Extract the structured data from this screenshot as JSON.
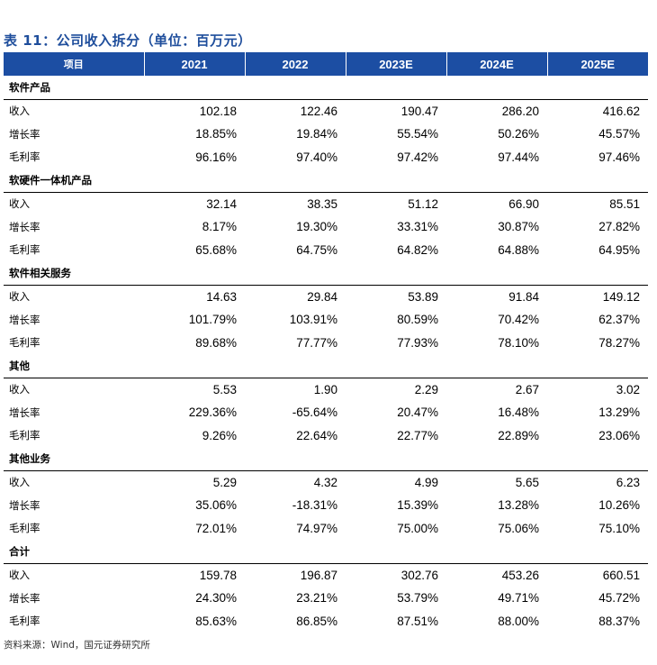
{
  "title": "表 11：公司收入拆分（单位：百万元）",
  "header": {
    "label": "项目",
    "years": [
      "2021",
      "2022",
      "2023E",
      "2024E",
      "2025E"
    ]
  },
  "sections": [
    {
      "name": "软件产品",
      "rows": [
        {
          "label": "收入",
          "values": [
            "102.18",
            "122.46",
            "190.47",
            "286.20",
            "416.62"
          ]
        },
        {
          "label": "增长率",
          "values": [
            "18.85%",
            "19.84%",
            "55.54%",
            "50.26%",
            "45.57%"
          ]
        },
        {
          "label": "毛利率",
          "values": [
            "96.16%",
            "97.40%",
            "97.42%",
            "97.44%",
            "97.46%"
          ]
        }
      ]
    },
    {
      "name": "软硬件一体机产品",
      "rows": [
        {
          "label": "收入",
          "values": [
            "32.14",
            "38.35",
            "51.12",
            "66.90",
            "85.51"
          ]
        },
        {
          "label": "增长率",
          "values": [
            "8.17%",
            "19.30%",
            "33.31%",
            "30.87%",
            "27.82%"
          ]
        },
        {
          "label": "毛利率",
          "values": [
            "65.68%",
            "64.75%",
            "64.82%",
            "64.88%",
            "64.95%"
          ]
        }
      ]
    },
    {
      "name": "软件相关服务",
      "rows": [
        {
          "label": "收入",
          "values": [
            "14.63",
            "29.84",
            "53.89",
            "91.84",
            "149.12"
          ]
        },
        {
          "label": "增长率",
          "values": [
            "101.79%",
            "103.91%",
            "80.59%",
            "70.42%",
            "62.37%"
          ]
        },
        {
          "label": "毛利率",
          "values": [
            "89.68%",
            "77.77%",
            "77.93%",
            "78.10%",
            "78.27%"
          ]
        }
      ]
    },
    {
      "name": "其他",
      "rows": [
        {
          "label": "收入",
          "values": [
            "5.53",
            "1.90",
            "2.29",
            "2.67",
            "3.02"
          ]
        },
        {
          "label": "增长率",
          "values": [
            "229.36%",
            "-65.64%",
            "20.47%",
            "16.48%",
            "13.29%"
          ]
        },
        {
          "label": "毛利率",
          "values": [
            "9.26%",
            "22.64%",
            "22.77%",
            "22.89%",
            "23.06%"
          ]
        }
      ]
    },
    {
      "name": "其他业务",
      "rows": [
        {
          "label": "收入",
          "values": [
            "5.29",
            "4.32",
            "4.99",
            "5.65",
            "6.23"
          ]
        },
        {
          "label": "增长率",
          "values": [
            "35.06%",
            "-18.31%",
            "15.39%",
            "13.28%",
            "10.26%"
          ]
        },
        {
          "label": "毛利率",
          "values": [
            "72.01%",
            "74.97%",
            "75.00%",
            "75.06%",
            "75.10%"
          ]
        }
      ]
    },
    {
      "name": "合计",
      "rows": [
        {
          "label": "收入",
          "values": [
            "159.78",
            "196.87",
            "302.76",
            "453.26",
            "660.51"
          ]
        },
        {
          "label": "增长率",
          "values": [
            "24.30%",
            "23.21%",
            "53.79%",
            "49.71%",
            "45.72%"
          ]
        },
        {
          "label": "毛利率",
          "values": [
            "85.63%",
            "86.85%",
            "87.51%",
            "88.00%",
            "88.37%"
          ]
        }
      ]
    }
  ],
  "source": "资料来源：Wind，国元证券研究所"
}
